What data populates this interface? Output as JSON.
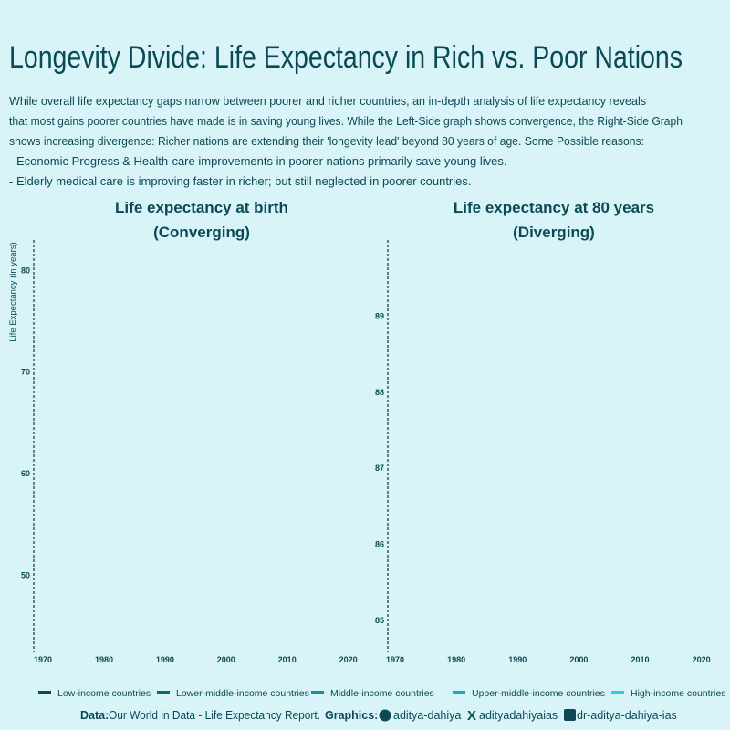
{
  "title": "Longevity Divide: Life Expectancy in Rich vs. Poor Nations",
  "subtitle": [
    "While overall life expectancy gaps narrow between poorer and richer countries, an in-depth analysis of life expectancy reveals",
    "that most gains poorer countries have made is in saving young lives. While the Left-Side graph shows convergence, the Right-Side Graph",
    "shows increasing divergence: Richer nations are extending their 'longevity lead' beyond 80 years of age. Some Possible reasons:",
    "-   Economic Progress & Health-care improvements in poorer nations primarily save young lives.",
    "-   Elderly medical care is improving faster in richer; but still neglected in poorer countries."
  ],
  "chart_data": [
    {
      "type": "line",
      "title": "Life expectancy at birth",
      "subtitle": "(Converging)",
      "y_label": "Life Expectancy (in years)",
      "xlim": [
        1968.5,
        2022
      ],
      "xticks": [
        1970,
        1980,
        1990,
        2000,
        2010,
        2020
      ],
      "ylim": [
        42.4,
        83
      ],
      "yticks": [
        50,
        60,
        70,
        80
      ]
    },
    {
      "type": "line",
      "title": "Life expectancy at 80 years",
      "subtitle": "(Diverging)",
      "xlim": [
        1968.8,
        2022
      ],
      "xticks": [
        1970,
        1980,
        1990,
        2000,
        2010,
        2020
      ],
      "ylim": [
        84.58,
        90
      ],
      "yticks": [
        85,
        86,
        87,
        88,
        89
      ]
    }
  ],
  "legend": [
    {
      "name": "Low-income countries",
      "color": "#0b4a55"
    },
    {
      "name": "Lower-middle-income countries",
      "color": "#0e6b76"
    },
    {
      "name": "Middle-income countries",
      "color": "#12919b"
    },
    {
      "name": "Upper-middle-income countries",
      "color": "#18acc0"
    },
    {
      "name": "High-income countries",
      "color": "#2fcbe0"
    }
  ],
  "caption": {
    "data_label": "Data:",
    "data_source": "Our World in Data  - Life Expectancy Report.",
    "graphics_label": "Graphics:",
    "github": "aditya-dahiya",
    "x": "adityadahiyaias",
    "linkedin": "dr-aditya-dahiya-ias"
  }
}
